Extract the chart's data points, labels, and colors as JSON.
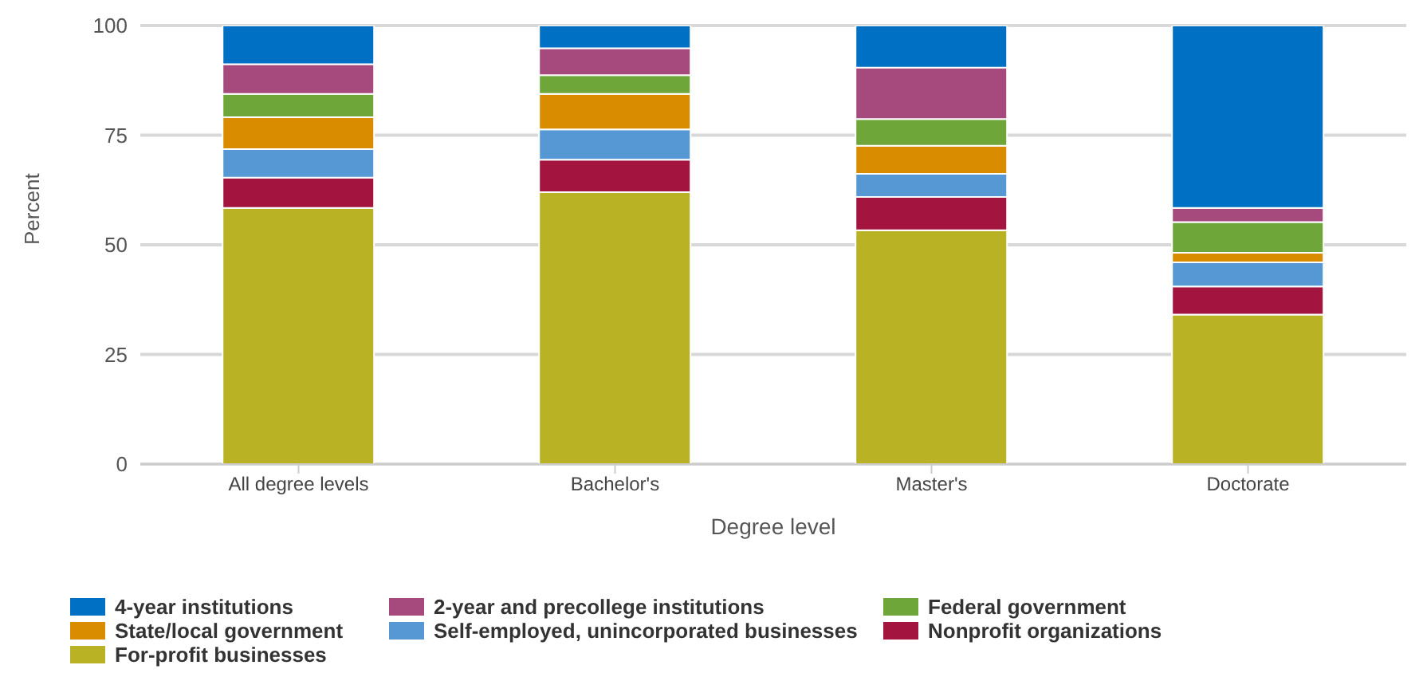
{
  "chart_data": {
    "type": "bar",
    "stacked": true,
    "xlabel": "Degree level",
    "ylabel": "Percent",
    "categories": [
      "All degree levels",
      "Bachelor's",
      "Master's",
      "Doctorate"
    ],
    "series": [
      {
        "name": "For-profit businesses",
        "color": "#bab225",
        "values": [
          58.4,
          62.0,
          53.3,
          34.1
        ]
      },
      {
        "name": "Nonprofit organizations",
        "color": "#a3143f",
        "values": [
          6.9,
          7.4,
          7.6,
          6.4
        ]
      },
      {
        "name": "Self-employed, unincorporated businesses",
        "color": "#5598d4",
        "values": [
          6.5,
          6.9,
          5.3,
          5.5
        ]
      },
      {
        "name": "State/local government",
        "color": "#d98c00",
        "values": [
          7.3,
          8.1,
          6.4,
          2.2
        ]
      },
      {
        "name": "Federal government",
        "color": "#6ea63a",
        "values": [
          5.3,
          4.3,
          6.1,
          7.0
        ]
      },
      {
        "name": "2-year and precollege institutions",
        "color": "#a6497c",
        "values": [
          6.8,
          6.1,
          11.7,
          3.2
        ]
      },
      {
        "name": "4-year institutions",
        "color": "#0070c4",
        "values": [
          8.8,
          5.2,
          9.6,
          41.6
        ]
      }
    ],
    "ylim": [
      0,
      100
    ],
    "yticks": [
      0,
      25,
      50,
      75,
      100
    ],
    "grid": "y",
    "legend": "bottom"
  }
}
